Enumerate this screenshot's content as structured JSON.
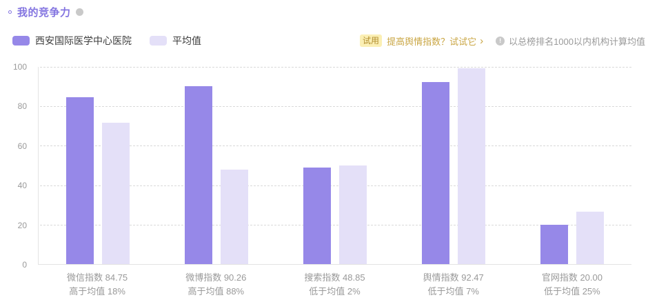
{
  "header": {
    "title": "我的竞争力",
    "legend": [
      {
        "label": "西安国际医学中心医院",
        "color": "#9688e8"
      },
      {
        "label": "平均值",
        "color": "#e4e0f8"
      }
    ],
    "promo": {
      "badge": "试用",
      "text": "提高舆情指数？试试它",
      "chevron": "›"
    },
    "info_icon_glyph": "!",
    "note": "以总榜排名1000以内机构计算均值"
  },
  "chart_data": {
    "type": "bar",
    "categories": [
      "微信指数",
      "微博指数",
      "搜索指数",
      "舆情指数",
      "官网指数"
    ],
    "series": [
      {
        "name": "西安国际医学中心医院",
        "color": "#9688e8",
        "values": [
          84.75,
          90.26,
          48.85,
          92.47,
          20.0
        ]
      },
      {
        "name": "平均值",
        "color": "#e4e0f8",
        "values": [
          71.8,
          48.0,
          49.85,
          99.4,
          26.7
        ]
      }
    ],
    "x_axis_labels": [
      {
        "line1": "微信指数 84.75",
        "line2": "高于均值 18%"
      },
      {
        "line1": "微博指数 90.26",
        "line2": "高于均值 88%"
      },
      {
        "line1": "搜索指数 48.85",
        "line2": "低于均值 2%"
      },
      {
        "line1": "舆情指数 92.47",
        "line2": "低于均值 7%"
      },
      {
        "line1": "官网指数 20.00",
        "line2": "低于均值 25%"
      }
    ],
    "y_ticks": [
      0,
      20,
      40,
      60,
      80,
      100
    ],
    "ylim": [
      0,
      100
    ],
    "grid": "horizontal-dashed",
    "legend_position": "top-left",
    "title": "我的竞争力"
  }
}
